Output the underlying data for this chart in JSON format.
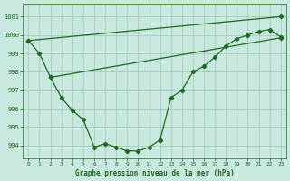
{
  "x": [
    0,
    1,
    2,
    3,
    4,
    5,
    6,
    7,
    8,
    9,
    10,
    11,
    12,
    13,
    14,
    15,
    16,
    17,
    18,
    19,
    20,
    21,
    22,
    23
  ],
  "line_zigzag": [
    999.7,
    999.0,
    997.7,
    996.6,
    995.9,
    995.4,
    993.9,
    994.1,
    993.9,
    993.7,
    993.7,
    993.9,
    994.3,
    996.6,
    997.0,
    998.0,
    998.3,
    998.8,
    999.4,
    999.8,
    1000.0,
    1000.2,
    1000.3,
    999.9
  ],
  "line_top": [
    999.7,
    null,
    null,
    null,
    null,
    null,
    null,
    null,
    null,
    null,
    null,
    null,
    null,
    null,
    null,
    null,
    null,
    null,
    null,
    null,
    null,
    null,
    null,
    1001.0
  ],
  "line_mid": [
    null,
    null,
    997.7,
    null,
    null,
    null,
    null,
    null,
    null,
    null,
    null,
    null,
    null,
    null,
    null,
    null,
    null,
    null,
    null,
    null,
    null,
    null,
    null,
    999.85
  ],
  "ylim_min": 993.3,
  "ylim_max": 1001.7,
  "yticks": [
    994,
    995,
    996,
    997,
    998,
    999,
    1000,
    1001
  ],
  "xticks": [
    0,
    1,
    2,
    3,
    4,
    5,
    6,
    7,
    8,
    9,
    10,
    11,
    12,
    13,
    14,
    15,
    16,
    17,
    18,
    19,
    20,
    21,
    22,
    23
  ],
  "line_color": "#1a6b1a",
  "bg_color": "#c8e8e0",
  "grid_color": "#a0c8b8",
  "xlabel": "Graphe pression niveau de la mer (hPa)",
  "xlabel_color": "#1a6b1a",
  "marker": "D",
  "marker_size": 2.2,
  "linewidth": 0.9
}
